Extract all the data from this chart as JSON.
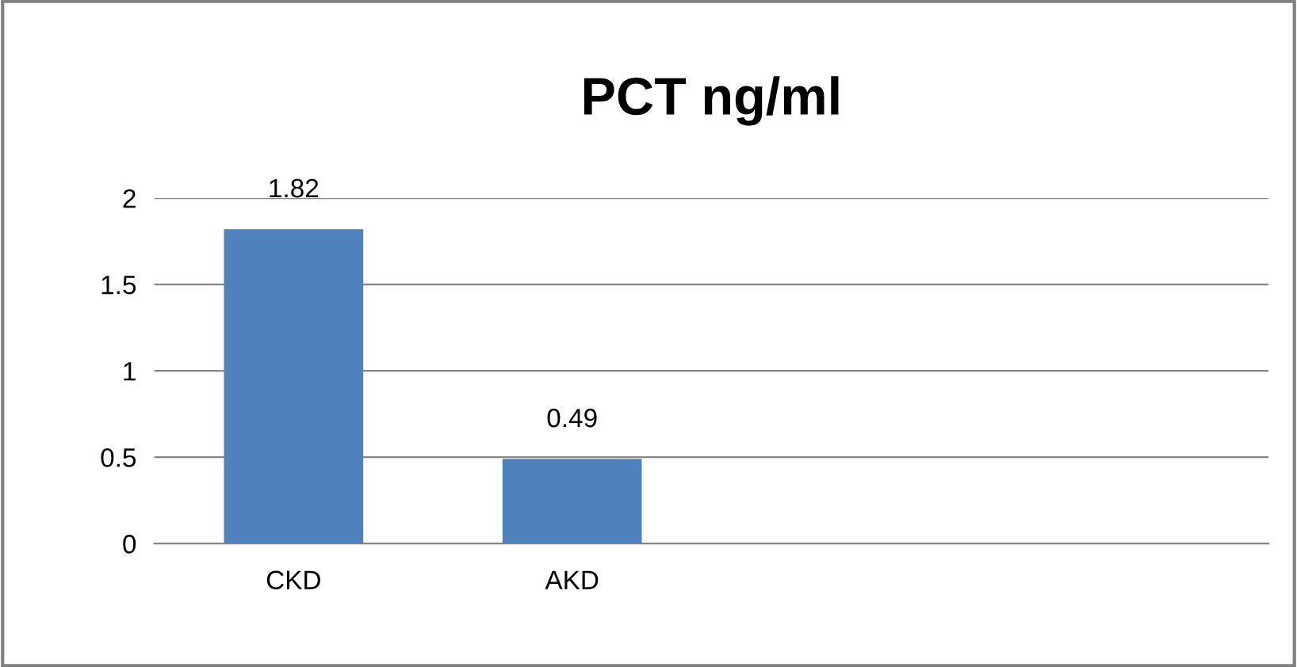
{
  "chart_data": {
    "type": "bar",
    "title": "PCT ng/ml",
    "categories": [
      "CKD",
      "AKD",
      null,
      null
    ],
    "values": [
      1.82,
      0.49,
      null,
      null
    ],
    "color": "#4f81bd",
    "ylim": [
      0,
      2
    ],
    "yticks": [
      0,
      0.5,
      1,
      1.5,
      2
    ],
    "grid": "y",
    "data_labels": true
  }
}
